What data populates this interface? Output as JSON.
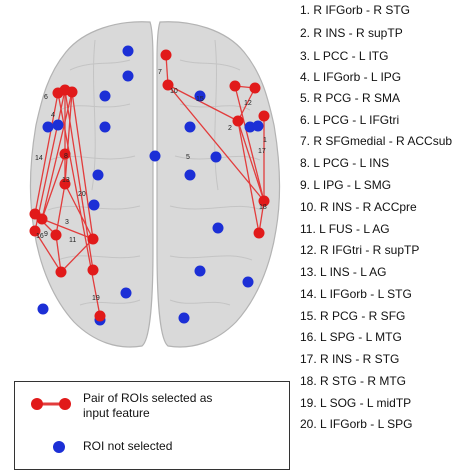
{
  "pairs": [
    "1. R IFGorb - R STG",
    "2. R INS - R supTP",
    "3. L PCC - L ITG",
    "4. L IFGorb - L IPG",
    "5. R PCG - R SMA",
    "6. L PCG - L IFGtri",
    "7. R SFGmedial - R ACCsub",
    "8. L PCG - L INS",
    "9. L IPG - L SMG",
    "10. R INS - R ACCpre",
    "11. L FUS - L AG",
    "12. R IFGtri - R supTP",
    "13. L INS - L AG",
    "14. L IFGorb - L STG",
    "15. R PCG - R SFG",
    "16. L SPG - L MTG",
    "17. R INS - R STG",
    "18. R STG - R MTG",
    "19. L SOG - L midTP",
    "20. L IFGorb - L SPG"
  ],
  "map_labels": [
    "7",
    "10",
    "15",
    "12",
    "2",
    "17",
    "1",
    "5",
    "6",
    "4",
    "8",
    "14",
    "13",
    "20",
    "18",
    "3",
    "9",
    "11",
    "16",
    "19"
  ],
  "legend": {
    "selected_label": "Pair of ROIs selected as input feature",
    "selected_line1": "Pair of ROIs selected as",
    "selected_line2": "input feature",
    "unselected_label": "ROI not selected"
  },
  "colors": {
    "selected": "#e11a1a",
    "unselected": "#1c2fd6",
    "link": "#e23c3c",
    "brain_fill": "#d8d8d8",
    "brain_stroke": "#b4b4b4"
  }
}
